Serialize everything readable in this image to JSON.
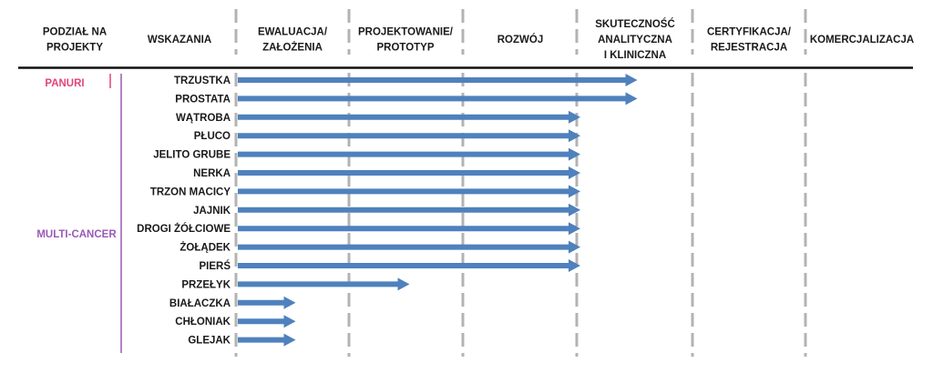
{
  "chart_data": {
    "type": "bar",
    "title": "",
    "stage_headers": [
      "PODZIAŁ NA PROJEKTY",
      "WSKAZANIA",
      "EWALUACJA/ ZAŁOŻENIA",
      "PROJEKTOWANIE/ PROTOTYP",
      "ROZWÓJ",
      "SKUTECZNOŚĆ ANALITYCZNA I KLINICZNA",
      "CERTYFIKACJA/ REJESTRACJA",
      "KOMERCJALIZACJA"
    ],
    "stages": [
      "EWALUACJA/ ZAŁOŻENIA",
      "PROJEKTOWANIE/ PROTOTYP",
      "ROZWÓJ",
      "SKUTECZNOŚĆ ANALITYCZNA I KLINICZNA",
      "CERTYFIKACJA/ REJESTRACJA",
      "KOMERCJALIZACJA"
    ],
    "groups": [
      {
        "name": "PANURI",
        "color": "#e0457b",
        "items": [
          "TRZUSTKA",
          "PROSTATA"
        ]
      },
      {
        "name": "MULTI-CANCER",
        "color": "#9b59b6",
        "items": [
          "WĄTROBA",
          "PŁUCO",
          "JELITO GRUBE",
          "NERKA",
          "TRZON MACICY",
          "JAJNIK",
          "DROGI ŻÓŁCIOWE",
          "ŻOŁĄDEK",
          "PIERŚ",
          "PRZEŁYK",
          "BIAŁACZKA",
          "CHŁONIAK",
          "GLEJAK"
        ]
      }
    ],
    "categories": [
      "TRZUSTKA",
      "PROSTATA",
      "WĄTROBA",
      "PŁUCO",
      "JELITO GRUBE",
      "NERKA",
      "TRZON MACICY",
      "JAJNIK",
      "DROGI ŻÓŁCIOWE",
      "ŻOŁĄDEK",
      "PIERŚ",
      "PRZEŁYK",
      "BIAŁACZKA",
      "CHŁONIAK",
      "GLEJAK"
    ],
    "progress_stages": [
      3.5,
      3.5,
      3,
      3,
      3,
      3,
      3,
      3,
      3,
      3,
      3,
      1.5,
      0.5,
      0.5,
      0.5
    ],
    "bar_color": "#4f81bd",
    "grid": true
  }
}
